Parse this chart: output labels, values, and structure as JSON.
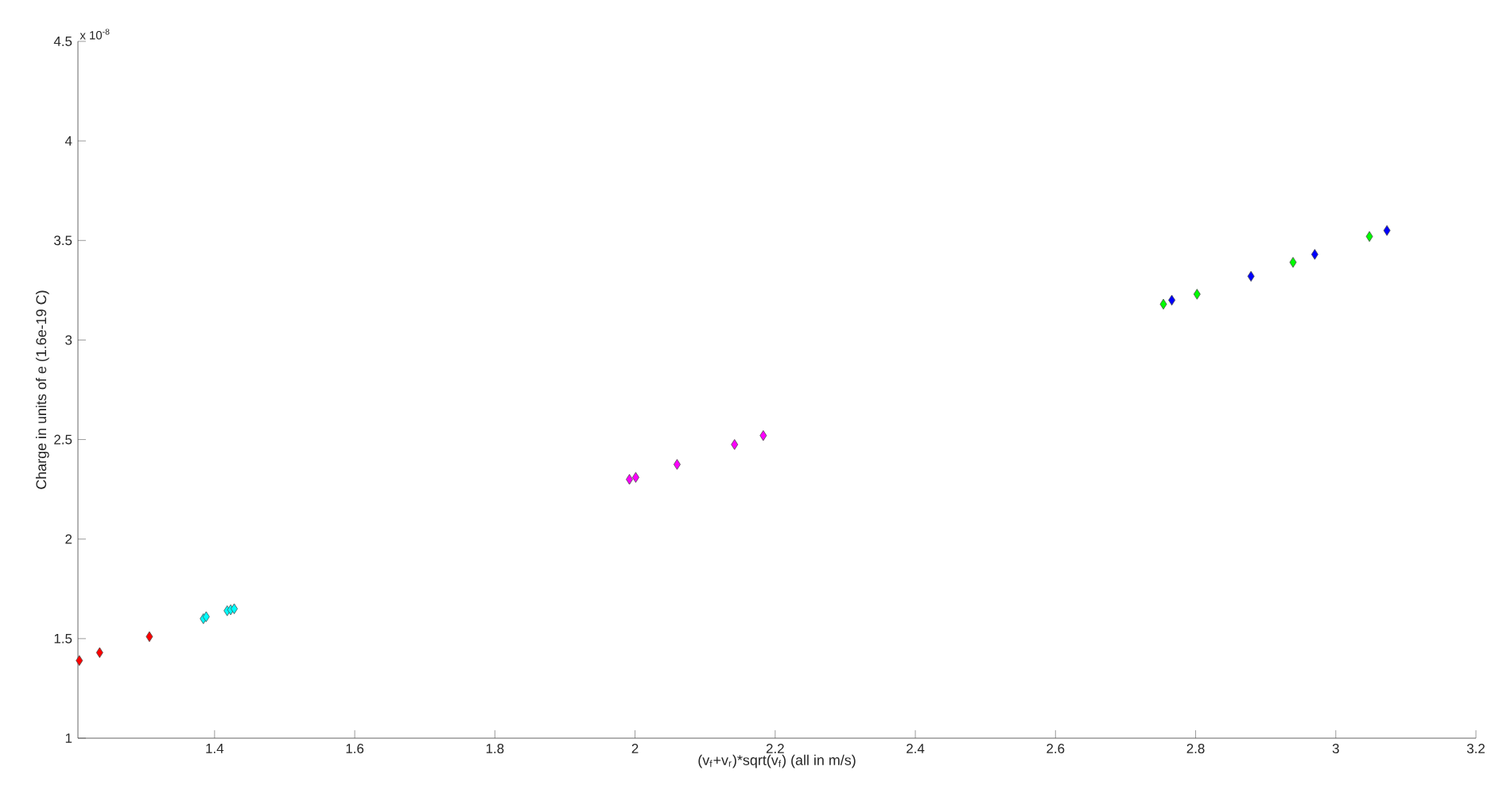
{
  "chart_data": {
    "type": "scatter",
    "xlabel": "(v$_{f}$+v$_{r}$)*sqrt(v$_{f}$) (all in m/s)",
    "ylabel": "Charge in units of e (1.6e-19 C)",
    "annotations": [
      "x 10$^{-8}$"
    ],
    "marker": "diamond",
    "grid": false,
    "xlim": [
      1.205,
      3.2
    ],
    "xticks": [
      1.4,
      1.6,
      1.8,
      2,
      2.2,
      2.4,
      2.6,
      2.8,
      3,
      3.2
    ],
    "ylim": [
      1,
      4.5
    ],
    "yticks": [
      1,
      1.5,
      2,
      2.5,
      3,
      3.5,
      4,
      4.5
    ],
    "series": [
      {
        "color": "#ff0000",
        "x": [
          1.207,
          1.236,
          1.307
        ],
        "values": [
          1.39,
          1.43,
          1.51
        ]
      },
      {
        "color": "#00ffff",
        "x": [
          1.384,
          1.388,
          1.418,
          1.423,
          1.428
        ],
        "values": [
          1.6,
          1.61,
          1.64,
          1.645,
          1.65
        ]
      },
      {
        "color": "#ff00ff",
        "x": [
          1.992,
          2.001,
          2.06,
          2.142,
          2.183
        ],
        "values": [
          2.3,
          2.31,
          2.375,
          2.475,
          2.52
        ]
      },
      {
        "color": "#00ff00",
        "x": [
          2.754,
          2.802,
          2.939,
          3.048
        ],
        "values": [
          3.18,
          3.23,
          3.39,
          3.52
        ]
      },
      {
        "color": "#0000ff",
        "x": [
          2.766,
          2.879,
          2.97,
          3.073
        ],
        "values": [
          3.2,
          3.32,
          3.43,
          3.55
        ]
      }
    ]
  }
}
